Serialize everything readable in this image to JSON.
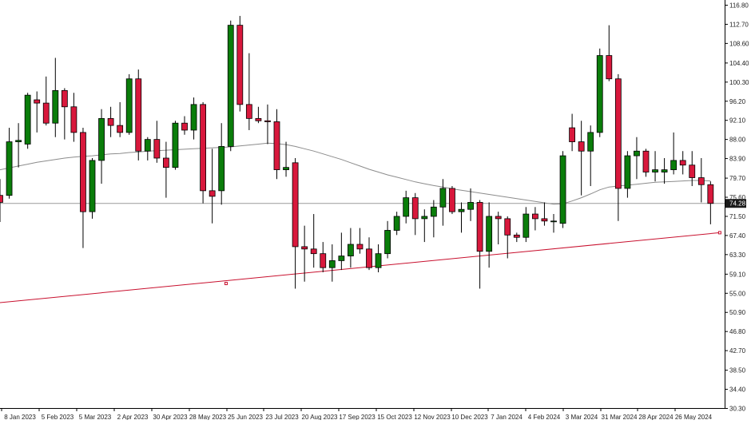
{
  "chart_data": {
    "type": "candlestick",
    "title": "",
    "xlabel": "",
    "ylabel": "",
    "ylim": [
      30.3,
      118.8
    ],
    "grid": false,
    "legend": "none",
    "y_ticks": [
      "116.80",
      "112.70",
      "108.60",
      "104.40",
      "100.30",
      "96.20",
      "92.10",
      "88.00",
      "83.90",
      "79.70",
      "75.60",
      "71.50",
      "67.40",
      "63.30",
      "59.10",
      "55.00",
      "50.90",
      "46.80",
      "42.70",
      "38.50",
      "34.40",
      "30.30"
    ],
    "x_ticks": [
      "8 Jan 2023",
      "5 Feb 2023",
      "5 Mar 2023",
      "2 Apr 2023",
      "30 Apr 2023",
      "28 May 2023",
      "25 Jun 2023",
      "23 Jul 2023",
      "20 Aug 2023",
      "17 Sep 2023",
      "15 Oct 2023",
      "12 Nov 2023",
      "10 Dec 2023",
      "7 Jan 2024",
      "4 Feb 2024",
      "3 Mar 2024",
      "31 Mar 2024",
      "28 Apr 2024",
      "26 May 2024"
    ],
    "current_price": "74.28",
    "colors": {
      "up": "#0a7d0a",
      "down": "#d8183c",
      "wick": "#000000",
      "ma": "#8c8c8c",
      "trendline": "#c8102e",
      "price_line": "#9a9a9a",
      "price_label_bg": "#1a1a1a",
      "price_label_fg": "#ffffff"
    },
    "candles": [
      {
        "o": 76.0,
        "h": 79.5,
        "l": 70.3,
        "c": 74.5
      },
      {
        "o": 76.0,
        "h": 90.5,
        "l": 75.3,
        "c": 87.5
      },
      {
        "o": 87.5,
        "h": 91.5,
        "l": 82.0,
        "c": 87.8
      },
      {
        "o": 87.0,
        "h": 98.0,
        "l": 86.0,
        "c": 97.5
      },
      {
        "o": 96.5,
        "h": 98.3,
        "l": 89.5,
        "c": 95.8
      },
      {
        "o": 95.8,
        "h": 101.5,
        "l": 91.0,
        "c": 91.5
      },
      {
        "o": 91.5,
        "h": 105.5,
        "l": 88.5,
        "c": 98.5
      },
      {
        "o": 98.5,
        "h": 99.0,
        "l": 88.0,
        "c": 95.0
      },
      {
        "o": 95.0,
        "h": 98.0,
        "l": 87.5,
        "c": 89.5
      },
      {
        "o": 89.5,
        "h": 90.5,
        "l": 64.7,
        "c": 72.5
      },
      {
        "o": 72.5,
        "h": 84.0,
        "l": 71.0,
        "c": 83.5
      },
      {
        "o": 83.5,
        "h": 94.5,
        "l": 78.5,
        "c": 92.5
      },
      {
        "o": 92.5,
        "h": 95.0,
        "l": 88.5,
        "c": 91.0
      },
      {
        "o": 91.0,
        "h": 96.0,
        "l": 88.5,
        "c": 89.5
      },
      {
        "o": 89.5,
        "h": 102.0,
        "l": 89.0,
        "c": 101.0
      },
      {
        "o": 101.0,
        "h": 103.0,
        "l": 83.5,
        "c": 85.5
      },
      {
        "o": 85.5,
        "h": 88.5,
        "l": 83.5,
        "c": 88.0
      },
      {
        "o": 88.0,
        "h": 92.0,
        "l": 83.0,
        "c": 84.0
      },
      {
        "o": 84.0,
        "h": 87.5,
        "l": 75.5,
        "c": 82.0
      },
      {
        "o": 82.0,
        "h": 92.0,
        "l": 81.5,
        "c": 91.5
      },
      {
        "o": 91.5,
        "h": 93.0,
        "l": 89.0,
        "c": 90.0
      },
      {
        "o": 90.0,
        "h": 97.0,
        "l": 88.0,
        "c": 95.5
      },
      {
        "o": 95.5,
        "h": 96.0,
        "l": 74.3,
        "c": 77.0
      },
      {
        "o": 77.0,
        "h": 86.0,
        "l": 70.0,
        "c": 75.8
      },
      {
        "o": 77.0,
        "h": 91.5,
        "l": 74.0,
        "c": 86.5
      },
      {
        "o": 86.5,
        "h": 113.5,
        "l": 85.5,
        "c": 112.5
      },
      {
        "o": 112.5,
        "h": 114.5,
        "l": 94.0,
        "c": 95.5
      },
      {
        "o": 95.5,
        "h": 106.5,
        "l": 90.0,
        "c": 92.5
      },
      {
        "o": 92.5,
        "h": 95.0,
        "l": 91.5,
        "c": 92.0
      },
      {
        "o": 92.0,
        "h": 95.5,
        "l": 87.0,
        "c": 91.8
      },
      {
        "o": 91.8,
        "h": 94.5,
        "l": 79.5,
        "c": 81.5
      },
      {
        "o": 81.5,
        "h": 87.5,
        "l": 80.0,
        "c": 82.0
      },
      {
        "o": 83.0,
        "h": 84.0,
        "l": 56.0,
        "c": 65.0
      },
      {
        "o": 65.0,
        "h": 69.5,
        "l": 57.5,
        "c": 64.5
      },
      {
        "o": 64.5,
        "h": 72.0,
        "l": 60.5,
        "c": 63.5
      },
      {
        "o": 63.5,
        "h": 66.0,
        "l": 59.5,
        "c": 60.5
      },
      {
        "o": 60.5,
        "h": 65.5,
        "l": 57.5,
        "c": 62.0
      },
      {
        "o": 62.0,
        "h": 68.0,
        "l": 60.0,
        "c": 63.0
      },
      {
        "o": 63.0,
        "h": 69.0,
        "l": 60.5,
        "c": 65.5
      },
      {
        "o": 65.5,
        "h": 69.0,
        "l": 63.5,
        "c": 64.5
      },
      {
        "o": 64.5,
        "h": 67.0,
        "l": 60.0,
        "c": 60.5
      },
      {
        "o": 60.5,
        "h": 65.5,
        "l": 59.5,
        "c": 63.5
      },
      {
        "o": 63.5,
        "h": 70.5,
        "l": 62.5,
        "c": 68.5
      },
      {
        "o": 68.5,
        "h": 72.5,
        "l": 67.5,
        "c": 71.5
      },
      {
        "o": 71.5,
        "h": 77.0,
        "l": 70.0,
        "c": 75.5
      },
      {
        "o": 75.5,
        "h": 76.5,
        "l": 67.5,
        "c": 71.0
      },
      {
        "o": 71.0,
        "h": 73.0,
        "l": 66.0,
        "c": 71.5
      },
      {
        "o": 71.5,
        "h": 75.0,
        "l": 67.0,
        "c": 73.5
      },
      {
        "o": 73.5,
        "h": 79.5,
        "l": 69.5,
        "c": 77.5
      },
      {
        "o": 77.5,
        "h": 78.0,
        "l": 72.0,
        "c": 72.5
      },
      {
        "o": 72.5,
        "h": 74.5,
        "l": 68.0,
        "c": 73.0
      },
      {
        "o": 73.0,
        "h": 77.5,
        "l": 70.5,
        "c": 74.5
      },
      {
        "o": 74.5,
        "h": 75.0,
        "l": 56.0,
        "c": 64.0
      },
      {
        "o": 64.0,
        "h": 74.5,
        "l": 60.5,
        "c": 71.5
      },
      {
        "o": 71.5,
        "h": 72.5,
        "l": 65.5,
        "c": 71.0
      },
      {
        "o": 71.0,
        "h": 71.5,
        "l": 62.5,
        "c": 67.5
      },
      {
        "o": 67.5,
        "h": 68.0,
        "l": 66.0,
        "c": 67.0
      },
      {
        "o": 67.0,
        "h": 73.5,
        "l": 66.0,
        "c": 72.0
      },
      {
        "o": 72.0,
        "h": 73.5,
        "l": 68.5,
        "c": 71.0
      },
      {
        "o": 71.0,
        "h": 74.5,
        "l": 69.5,
        "c": 70.5
      },
      {
        "o": 70.5,
        "h": 72.0,
        "l": 68.0,
        "c": 70.5
      },
      {
        "o": 70.0,
        "h": 85.5,
        "l": 69.0,
        "c": 84.5
      },
      {
        "o": 90.5,
        "h": 93.5,
        "l": 85.5,
        "c": 87.5
      },
      {
        "o": 87.5,
        "h": 92.0,
        "l": 76.0,
        "c": 85.5
      },
      {
        "o": 85.5,
        "h": 91.0,
        "l": 78.0,
        "c": 89.5
      },
      {
        "o": 89.5,
        "h": 107.5,
        "l": 88.5,
        "c": 106.0
      },
      {
        "o": 106.0,
        "h": 112.5,
        "l": 100.5,
        "c": 101.0
      },
      {
        "o": 101.0,
        "h": 102.0,
        "l": 70.5,
        "c": 77.5
      },
      {
        "o": 77.5,
        "h": 85.5,
        "l": 75.5,
        "c": 84.5
      },
      {
        "o": 84.5,
        "h": 88.5,
        "l": 79.5,
        "c": 85.5
      },
      {
        "o": 85.5,
        "h": 86.0,
        "l": 80.0,
        "c": 81.0
      },
      {
        "o": 81.0,
        "h": 85.5,
        "l": 79.0,
        "c": 81.5
      },
      {
        "o": 81.0,
        "h": 84.0,
        "l": 78.5,
        "c": 81.5
      },
      {
        "o": 81.5,
        "h": 89.5,
        "l": 80.5,
        "c": 83.5
      },
      {
        "o": 83.5,
        "h": 85.5,
        "l": 80.5,
        "c": 82.5
      },
      {
        "o": 82.5,
        "h": 85.5,
        "l": 78.0,
        "c": 79.8
      },
      {
        "o": 79.8,
        "h": 84.0,
        "l": 74.5,
        "c": 78.3
      },
      {
        "o": 78.3,
        "h": 79.0,
        "l": 69.8,
        "c": 74.28
      }
    ],
    "ma_series": [
      81.5,
      81.9,
      82.3,
      82.7,
      83.1,
      83.4,
      83.7,
      84.0,
      84.2,
      84.4,
      84.5,
      84.7,
      84.9,
      85.0,
      85.2,
      85.3,
      85.5,
      85.6,
      85.7,
      85.8,
      85.9,
      86.0,
      86.1,
      86.2,
      86.3,
      86.4,
      86.6,
      86.8,
      87.0,
      87.2,
      87.1,
      86.9,
      86.5,
      86.0,
      85.5,
      84.9,
      84.3,
      83.7,
      83.0,
      82.3,
      81.6,
      81.0,
      80.4,
      79.9,
      79.4,
      78.9,
      78.5,
      78.1,
      77.8,
      77.4,
      77.1,
      76.8,
      76.5,
      76.2,
      75.9,
      75.6,
      75.3,
      75.0,
      74.7,
      74.4,
      74.1,
      74.2,
      74.8,
      75.5,
      76.3,
      77.2,
      77.8,
      78.0,
      78.2,
      78.4,
      78.6,
      78.8,
      78.9,
      79.0,
      79.1,
      79.2,
      79.2,
      79.1
    ],
    "trendline": {
      "from": {
        "bar": -1,
        "value": 52.8
      },
      "mid": {
        "bar": 24.5,
        "value": 57.1
      },
      "to": {
        "bar": 78,
        "value": 68.0
      }
    },
    "current_price_value": 74.28
  }
}
